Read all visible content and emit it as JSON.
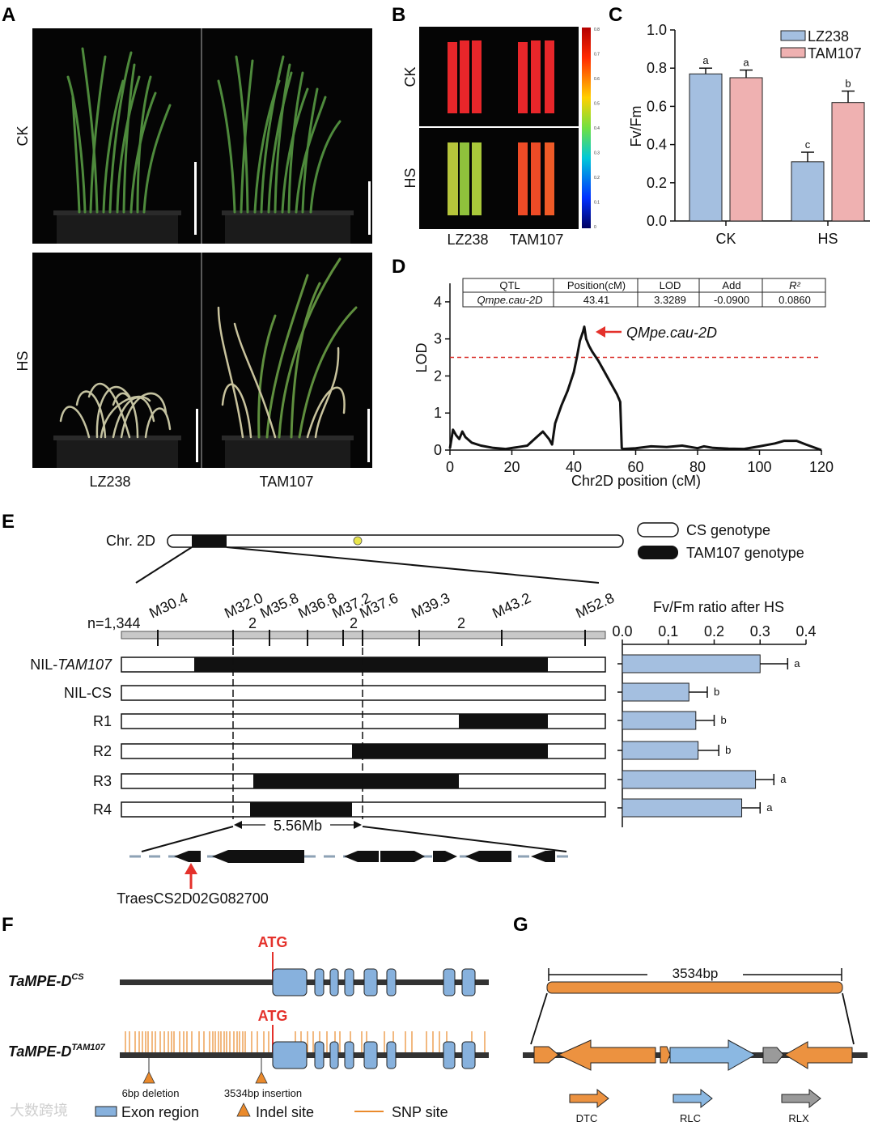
{
  "panel_labels": {
    "a": "A",
    "b": "B",
    "c": "C",
    "d": "D",
    "e": "E",
    "f": "F",
    "g": "G"
  },
  "panel_a": {
    "row_labels": [
      "CK",
      "HS"
    ],
    "col_labels": [
      "LZ238",
      "TAM107"
    ]
  },
  "panel_b": {
    "row_labels": [
      "CK",
      "HS"
    ],
    "col_labels": [
      "LZ238",
      "TAM107"
    ],
    "colorbar_ticks": [
      "0.8",
      "0.7",
      "0.6",
      "0.5",
      "0.4",
      "0.3",
      "0.2",
      "0.1",
      "0"
    ]
  },
  "panel_c": {
    "ylabel": "Fv/Fm",
    "chart_data": {
      "type": "bar",
      "categories": [
        "CK",
        "HS"
      ],
      "series": [
        {
          "name": "LZ238",
          "values": [
            0.77,
            0.31
          ],
          "errors": [
            0.03,
            0.05
          ],
          "letters": [
            "a",
            "c"
          ],
          "color": "#a4bfe0"
        },
        {
          "name": "TAM107",
          "values": [
            0.75,
            0.62
          ],
          "errors": [
            0.04,
            0.06
          ],
          "letters": [
            "a",
            "b"
          ],
          "color": "#efb1b1"
        }
      ],
      "ylim": [
        0,
        1.0
      ],
      "yticks": [
        "0.0",
        "0.2",
        "0.4",
        "0.6",
        "0.8",
        "1.0"
      ]
    }
  },
  "panel_d": {
    "table": {
      "headers": [
        "QTL",
        "Position(cM)",
        "LOD",
        "Add",
        "R²"
      ],
      "row": [
        "Qmpe.cau-2D",
        "43.41",
        "3.3289",
        "-0.0900",
        "0.0860"
      ]
    },
    "qtl_label": "QMpe.cau-2D",
    "xlabel": "Chr2D position (cM)",
    "ylabel": "LOD",
    "chart_data": {
      "type": "line",
      "xlim": [
        0,
        120
      ],
      "ylim": [
        0,
        4.5
      ],
      "xticks": [
        "0",
        "20",
        "40",
        "60",
        "80",
        "100",
        "120"
      ],
      "yticks": [
        "0",
        "1",
        "2",
        "3",
        "4"
      ],
      "threshold": 2.5,
      "x": [
        0,
        1,
        2,
        3,
        4,
        5,
        7,
        10,
        14,
        18,
        22,
        25,
        28,
        30,
        32,
        33,
        34,
        36,
        38,
        40,
        41,
        42,
        43,
        43.4,
        44,
        45,
        46,
        48,
        50,
        52,
        54,
        55,
        55.5,
        56,
        60,
        65,
        70,
        75,
        80,
        82,
        85,
        90,
        95,
        100,
        105,
        108,
        112,
        115,
        120
      ],
      "y": [
        0.05,
        0.55,
        0.4,
        0.3,
        0.5,
        0.35,
        0.2,
        0.12,
        0.06,
        0.03,
        0.08,
        0.12,
        0.35,
        0.5,
        0.3,
        0.15,
        0.72,
        1.2,
        1.6,
        2.1,
        2.5,
        2.95,
        3.2,
        3.33,
        3.0,
        2.8,
        2.65,
        2.4,
        2.1,
        1.8,
        1.5,
        1.3,
        0.05,
        0.03,
        0.05,
        0.1,
        0.08,
        0.12,
        0.05,
        0.1,
        0.06,
        0.04,
        0.03,
        0.1,
        0.18,
        0.25,
        0.25,
        0.15,
        0.0
      ]
    }
  },
  "panel_e": {
    "chr_label": "Chr. 2D",
    "legend": [
      "CS genotype",
      "TAM107 genotype"
    ],
    "n_label": "n=1,344",
    "markers": [
      "M30.4",
      "M32.0",
      "M35.8",
      "M36.8",
      "M37.2",
      "M37.6",
      "M39.3",
      "M43.2",
      "M52.8"
    ],
    "recombinant_counts": [
      "2",
      "2",
      "2"
    ],
    "rows": [
      "NIL-",
      "NIL-CS",
      "R1",
      "R2",
      "R3",
      "R4"
    ],
    "row0_italic": "TAM107",
    "interval": "5.56Mb",
    "gene": "TraesCS2D02G082700",
    "bar_title": "Fv/Fm ratio after HS",
    "chart_data": {
      "type": "bar",
      "categories": [
        "NIL-TAM107",
        "NIL-CS",
        "R1",
        "R2",
        "R3",
        "R4"
      ],
      "values": [
        0.3,
        0.145,
        0.16,
        0.165,
        0.29,
        0.26
      ],
      "errors": [
        0.06,
        0.04,
        0.04,
        0.045,
        0.04,
        0.04
      ],
      "letters": [
        "a",
        "b",
        "b",
        "b",
        "a",
        "a"
      ],
      "xlim": [
        0,
        0.4
      ],
      "xticks": [
        "0.0",
        "0.1",
        "0.2",
        "0.3",
        "0.4"
      ]
    }
  },
  "panel_f": {
    "gene_cs": "TaMPE-D",
    "gene_cs_sup": "CS",
    "gene_tam": "TaMPE-D",
    "gene_tam_sup": "TAM107",
    "atg": "ATG",
    "deletion": "6bp deletion",
    "insertion": "3534bp insertion",
    "legend": [
      "Exon region",
      "Indel site",
      "SNP site"
    ]
  },
  "panel_g": {
    "length": "3534bp",
    "legend": [
      "DTC",
      "RLC",
      "RLX"
    ]
  },
  "watermark": "大数跨境"
}
